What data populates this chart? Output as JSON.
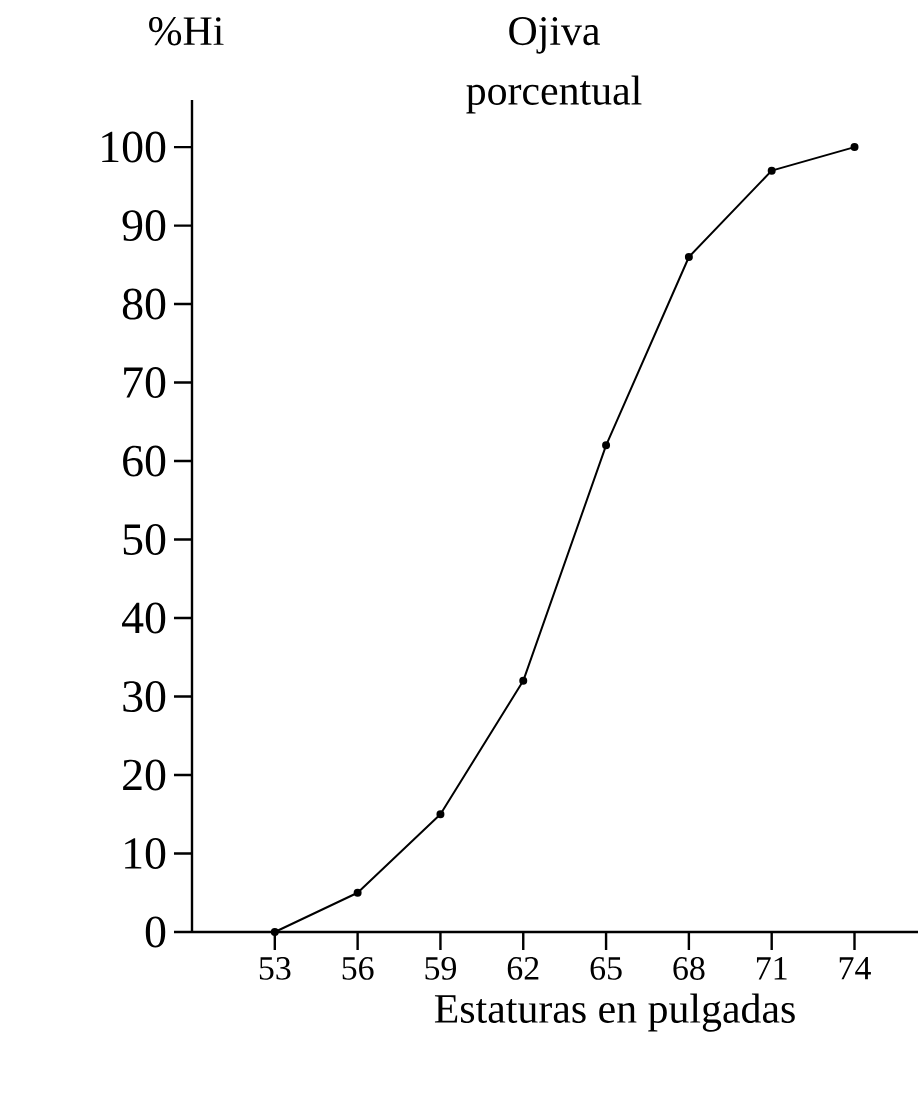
{
  "chart_data": {
    "type": "line",
    "title": "Ojiva porcentual",
    "ylabel": "%Hi",
    "xlabel": "Estaturas en pulgadas",
    "x": [
      53,
      56,
      59,
      62,
      65,
      68,
      71,
      74
    ],
    "series": [
      {
        "color": "#000000",
        "values": [
          0,
          5,
          15,
          32,
          62,
          86,
          97,
          100
        ]
      }
    ],
    "xlim": [
      50,
      76.3
    ],
    "ylim": [
      0,
      106
    ],
    "xticks": [
      53,
      56,
      59,
      62,
      65,
      68,
      71,
      74
    ],
    "yticks": [
      0,
      10,
      20,
      30,
      40,
      50,
      60,
      70,
      80,
      90,
      100
    ],
    "marker": "circle",
    "line_style": "solid"
  }
}
